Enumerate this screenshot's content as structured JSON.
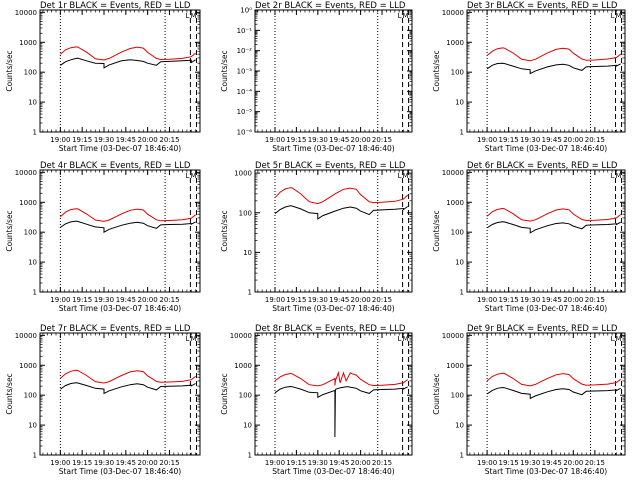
{
  "figure": {
    "background": "#ffffff",
    "event_color": "#000000",
    "lld_color": "#e00000"
  },
  "chart_data": [
    {
      "type": "line",
      "title": "Det 1r BLACK = Events, RED = LLD",
      "xlabel": "Start Time (03-Dec-07 18:46:40)",
      "ylabel": "Counts/sec",
      "log_y": true,
      "ylim": [
        1,
        12000
      ],
      "y_ticks": [
        "1",
        "10",
        "100",
        "1000",
        "10000"
      ],
      "x_tick_labels": [
        "19:00",
        "19:15",
        "19:30",
        "19:45",
        "20:00",
        "20:15"
      ],
      "x_hours": [
        0,
        0.06,
        0.12,
        0.18,
        0.2,
        0.3,
        0.4,
        0.5,
        0.5,
        0.56,
        0.7,
        0.8,
        0.88,
        0.95,
        1.0,
        1.1,
        1.15,
        1.25,
        1.4,
        1.5,
        1.5,
        1.55
      ],
      "series": [
        {
          "name": "Events",
          "color": "#000000",
          "values": [
            170,
            225,
            260,
            290,
            295,
            240,
            200,
            195,
            140,
            175,
            240,
            260,
            245,
            230,
            200,
            170,
            225,
            230,
            240,
            250,
            210,
            260
          ]
        },
        {
          "name": "LLD",
          "color": "#e00000",
          "values": [
            400,
            560,
            660,
            700,
            690,
            470,
            280,
            255,
            255,
            290,
            470,
            620,
            690,
            640,
            460,
            290,
            265,
            270,
            290,
            330,
            330,
            430
          ]
        }
      ],
      "markers": [
        {
          "label": "L"
        },
        {
          "label": "M"
        }
      ]
    },
    {
      "type": "line",
      "title": "Det 2r BLACK = Events, RED = LLD",
      "xlabel": "Start Time (03-Dec-07 18:46:40)",
      "ylabel": "Counts/sec",
      "log_y": true,
      "ylim": [
        1e-06,
        1
      ],
      "y_ticks": [
        "10⁻⁶",
        "10⁻⁵",
        "10⁻⁴",
        "10⁻³",
        "10⁻²",
        "10⁻¹",
        "10⁰"
      ],
      "x_tick_labels": [
        "19:00",
        "19:15",
        "19:30",
        "19:45",
        "20:00",
        "20:15"
      ],
      "x_hours": [],
      "series": [],
      "markers": [
        {
          "label": "L"
        },
        {
          "label": "M"
        }
      ]
    },
    {
      "type": "line",
      "title": "Det 3r BLACK = Events, RED = LLD",
      "xlabel": "Start Time (03-Dec-07 18:46:40)",
      "ylabel": "Counts/sec",
      "log_y": true,
      "ylim": [
        1,
        12000
      ],
      "y_ticks": [
        "1",
        "10",
        "100",
        "1000",
        "10000"
      ],
      "x_tick_labels": [
        "19:00",
        "19:15",
        "19:30",
        "19:45",
        "20:00",
        "20:15"
      ],
      "x_hours": [
        0,
        0.06,
        0.12,
        0.18,
        0.2,
        0.3,
        0.4,
        0.5,
        0.5,
        0.56,
        0.7,
        0.8,
        0.88,
        0.95,
        1.0,
        1.1,
        1.15,
        1.25,
        1.4,
        1.5,
        1.5,
        1.55
      ],
      "series": [
        {
          "name": "Events",
          "color": "#000000",
          "values": [
            130,
            170,
            195,
            200,
            195,
            160,
            130,
            120,
            90,
            110,
            150,
            175,
            185,
            170,
            140,
            115,
            150,
            155,
            160,
            170,
            160,
            190
          ]
        },
        {
          "name": "LLD",
          "color": "#e00000",
          "values": [
            360,
            500,
            610,
            650,
            640,
            440,
            270,
            240,
            240,
            270,
            440,
            580,
            630,
            590,
            430,
            275,
            250,
            255,
            275,
            310,
            310,
            400
          ]
        }
      ],
      "markers": [
        {
          "label": "L"
        },
        {
          "label": "M"
        }
      ]
    },
    {
      "type": "line",
      "title": "Det 4r BLACK = Events, RED = LLD",
      "xlabel": "Start Time (03-Dec-07 18:46:40)",
      "ylabel": "Counts/sec",
      "log_y": true,
      "ylim": [
        1,
        12000
      ],
      "y_ticks": [
        "1",
        "10",
        "100",
        "1000",
        "10000"
      ],
      "x_tick_labels": [
        "19:00",
        "19:15",
        "19:30",
        "19:45",
        "20:00",
        "20:15"
      ],
      "x_hours": [
        0,
        0.06,
        0.12,
        0.18,
        0.2,
        0.3,
        0.4,
        0.5,
        0.5,
        0.56,
        0.7,
        0.8,
        0.88,
        0.95,
        1.0,
        1.1,
        1.15,
        1.25,
        1.4,
        1.5,
        1.5,
        1.55
      ],
      "series": [
        {
          "name": "Events",
          "color": "#000000",
          "values": [
            145,
            190,
            220,
            235,
            230,
            185,
            150,
            140,
            100,
            125,
            170,
            200,
            215,
            200,
            165,
            135,
            175,
            180,
            185,
            195,
            185,
            220
          ]
        },
        {
          "name": "LLD",
          "color": "#e00000",
          "values": [
            330,
            470,
            570,
            610,
            600,
            410,
            255,
            230,
            230,
            255,
            410,
            540,
            590,
            550,
            400,
            260,
            240,
            245,
            260,
            295,
            295,
            380
          ]
        }
      ],
      "markers": [
        {
          "label": "L"
        },
        {
          "label": "M"
        }
      ]
    },
    {
      "type": "line",
      "title": "Det 5r BLACK = Events, RED = LLD",
      "xlabel": "Start Time (03-Dec-07 18:46:40)",
      "ylabel": "Counts/sec",
      "log_y": true,
      "ylim": [
        1,
        1200
      ],
      "y_ticks": [
        "1",
        "10",
        "100",
        "1000"
      ],
      "x_tick_labels": [
        "19:00",
        "19:15",
        "19:30",
        "19:45",
        "20:00",
        "20:15"
      ],
      "x_hours": [
        0,
        0.06,
        0.12,
        0.18,
        0.2,
        0.3,
        0.4,
        0.5,
        0.5,
        0.56,
        0.7,
        0.8,
        0.88,
        0.95,
        1.0,
        1.1,
        1.15,
        1.25,
        1.4,
        1.5,
        1.5,
        1.55
      ],
      "series": [
        {
          "name": "Events",
          "color": "#000000",
          "values": [
            95,
            120,
            140,
            150,
            148,
            125,
            100,
            95,
            70,
            85,
            110,
            130,
            140,
            130,
            110,
            90,
            115,
            118,
            122,
            128,
            120,
            145
          ]
        },
        {
          "name": "LLD",
          "color": "#e00000",
          "values": [
            240,
            330,
            400,
            430,
            425,
            300,
            190,
            170,
            170,
            190,
            300,
            390,
            420,
            390,
            285,
            190,
            180,
            185,
            195,
            220,
            220,
            280
          ]
        }
      ],
      "markers": [
        {
          "label": "L"
        },
        {
          "label": "M"
        }
      ]
    },
    {
      "type": "line",
      "title": "Det 6r BLACK = Events, RED = LLD",
      "xlabel": "Start Time (03-Dec-07 18:46:40)",
      "ylabel": "Counts/sec",
      "log_y": true,
      "ylim": [
        1,
        12000
      ],
      "y_ticks": [
        "1",
        "10",
        "100",
        "1000",
        "10000"
      ],
      "x_tick_labels": [
        "19:00",
        "19:15",
        "19:30",
        "19:45",
        "20:00",
        "20:15"
      ],
      "x_hours": [
        0,
        0.06,
        0.12,
        0.18,
        0.2,
        0.3,
        0.4,
        0.5,
        0.5,
        0.56,
        0.7,
        0.8,
        0.88,
        0.95,
        1.0,
        1.1,
        1.15,
        1.25,
        1.4,
        1.5,
        1.5,
        1.55
      ],
      "series": [
        {
          "name": "Events",
          "color": "#000000",
          "values": [
            140,
            180,
            210,
            225,
            220,
            180,
            145,
            135,
            95,
            120,
            165,
            195,
            205,
            190,
            160,
            130,
            170,
            175,
            180,
            190,
            180,
            215
          ]
        },
        {
          "name": "LLD",
          "color": "#e00000",
          "values": [
            340,
            480,
            580,
            620,
            610,
            415,
            260,
            235,
            235,
            260,
            415,
            550,
            600,
            560,
            405,
            265,
            245,
            250,
            265,
            300,
            300,
            390
          ]
        }
      ],
      "markers": [
        {
          "label": "L"
        },
        {
          "label": "M"
        }
      ]
    },
    {
      "type": "line",
      "title": "Det 7r BLACK = Events, RED = LLD",
      "xlabel": "Start Time (03-Dec-07 18:46:40)",
      "ylabel": "Counts/sec",
      "log_y": true,
      "ylim": [
        1,
        12000
      ],
      "y_ticks": [
        "1",
        "10",
        "100",
        "1000",
        "10000"
      ],
      "x_tick_labels": [
        "19:00",
        "19:15",
        "19:30",
        "19:45",
        "20:00",
        "20:15"
      ],
      "x_hours": [
        0,
        0.06,
        0.12,
        0.18,
        0.2,
        0.3,
        0.4,
        0.5,
        0.5,
        0.56,
        0.7,
        0.8,
        0.88,
        0.95,
        1.0,
        1.1,
        1.15,
        1.25,
        1.4,
        1.5,
        1.5,
        1.55
      ],
      "series": [
        {
          "name": "Events",
          "color": "#000000",
          "values": [
            160,
            210,
            245,
            260,
            255,
            210,
            170,
            160,
            115,
            140,
            190,
            225,
            240,
            225,
            185,
            150,
            195,
            200,
            205,
            215,
            205,
            245
          ]
        },
        {
          "name": "LLD",
          "color": "#e00000",
          "values": [
            370,
            520,
            630,
            680,
            670,
            455,
            285,
            255,
            255,
            285,
            455,
            600,
            660,
            615,
            445,
            290,
            270,
            275,
            290,
            330,
            330,
            425
          ]
        }
      ],
      "markers": [
        {
          "label": "L"
        },
        {
          "label": "M"
        }
      ]
    },
    {
      "type": "line",
      "title": "Det 8r BLACK = Events, RED = LLD",
      "xlabel": "Start Time (03-Dec-07 18:46:40)",
      "ylabel": "Counts/sec",
      "log_y": true,
      "ylim": [
        1,
        12000
      ],
      "y_ticks": [
        "1",
        "10",
        "100",
        "1000",
        "10000"
      ],
      "x_tick_labels": [
        "19:00",
        "19:15",
        "19:30",
        "19:45",
        "20:00",
        "20:15"
      ],
      "x_hours": [
        0,
        0.06,
        0.12,
        0.18,
        0.2,
        0.3,
        0.4,
        0.5,
        0.5,
        0.56,
        0.7,
        0.7,
        0.705,
        0.71,
        0.74,
        0.76,
        0.78,
        0.8,
        0.83,
        0.86,
        0.88,
        0.9,
        0.95,
        1.0,
        1.1,
        1.15,
        1.25,
        1.4,
        1.5,
        1.5,
        1.55
      ],
      "series": [
        {
          "name": "Events",
          "color": "#000000",
          "values": [
            120,
            160,
            185,
            195,
            192,
            160,
            125,
            120,
            85,
            105,
            145,
            4,
            145,
            160,
            170,
            175,
            180,
            185,
            190,
            190,
            185,
            180,
            170,
            140,
            115,
            150,
            155,
            160,
            170,
            160,
            190
          ]
        },
        {
          "name": "LLD",
          "color": "#e00000",
          "values": [
            300,
            410,
            490,
            530,
            520,
            360,
            225,
            205,
            205,
            225,
            360,
            210,
            300,
            330,
            560,
            260,
            380,
            560,
            300,
            430,
            560,
            520,
            470,
            340,
            225,
            210,
            215,
            230,
            260,
            260,
            335
          ]
        }
      ],
      "markers": [
        {
          "label": "L"
        },
        {
          "label": "M"
        }
      ]
    },
    {
      "type": "line",
      "title": "Det 9r BLACK = Events, RED = LLD",
      "xlabel": "Start Time (03-Dec-07 18:46:40)",
      "ylabel": "Counts/sec",
      "log_y": true,
      "ylim": [
        1,
        12000
      ],
      "y_ticks": [
        "1",
        "10",
        "100",
        "1000",
        "10000"
      ],
      "x_tick_labels": [
        "19:00",
        "19:15",
        "19:30",
        "19:45",
        "20:00",
        "20:15"
      ],
      "x_hours": [
        0,
        0.06,
        0.12,
        0.18,
        0.2,
        0.3,
        0.4,
        0.5,
        0.5,
        0.56,
        0.7,
        0.8,
        0.88,
        0.95,
        1.0,
        1.1,
        1.15,
        1.25,
        1.4,
        1.5,
        1.5,
        1.55
      ],
      "series": [
        {
          "name": "Events",
          "color": "#000000",
          "values": [
            110,
            145,
            170,
            180,
            178,
            145,
            115,
            108,
            78,
            95,
            130,
            155,
            165,
            155,
            128,
            104,
            135,
            138,
            142,
            150,
            142,
            170
          ]
        },
        {
          "name": "LLD",
          "color": "#e00000",
          "values": [
            300,
            420,
            505,
            540,
            535,
            365,
            230,
            205,
            205,
            230,
            365,
            480,
            525,
            490,
            355,
            235,
            215,
            220,
            235,
            265,
            265,
            340
          ]
        }
      ],
      "markers": [
        {
          "label": "L"
        },
        {
          "label": "M"
        }
      ]
    }
  ]
}
